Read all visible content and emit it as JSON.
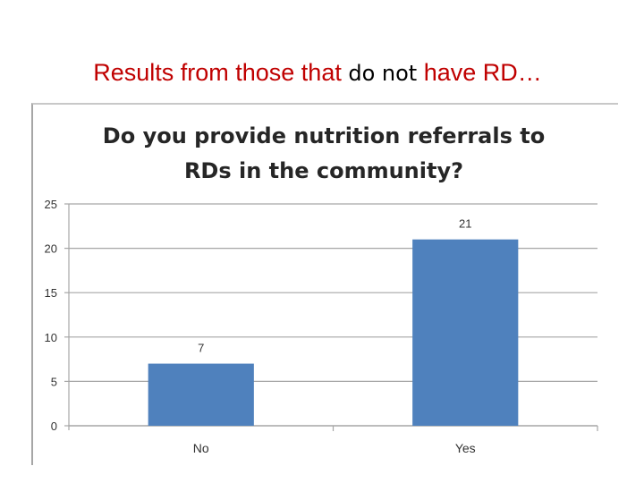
{
  "slide": {
    "title_pre": "Results from those that ",
    "title_emph": "do not",
    "title_post": " have RD…"
  },
  "colors": {
    "title": "#c00000",
    "bar": "#4f81bd",
    "grid": "#a6a6a6"
  },
  "chart_data": {
    "type": "bar",
    "title_lines": [
      "Do you provide nutrition referrals to",
      "RDs in the community?"
    ],
    "categories": [
      "No",
      "Yes"
    ],
    "values": [
      7,
      21
    ],
    "ylim": [
      0,
      25
    ],
    "yticks": [
      0,
      5,
      10,
      15,
      20,
      25
    ],
    "xlabel": "",
    "ylabel": "",
    "grid": true,
    "legend": "none"
  }
}
